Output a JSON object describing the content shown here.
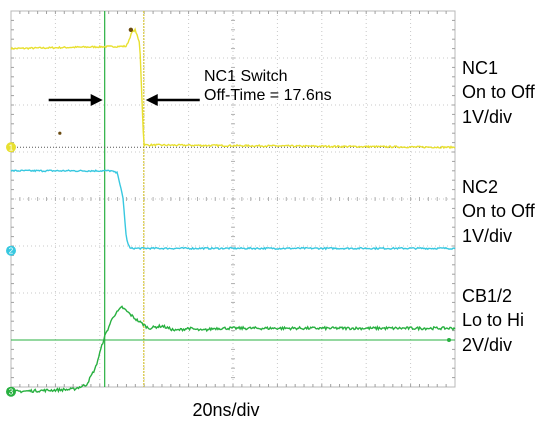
{
  "chart_data": {
    "type": "line",
    "title": "",
    "xlabel": "20ns/div",
    "ylabel": "",
    "grid": true,
    "divisions": {
      "x": 10,
      "y": 8
    },
    "x": {
      "unit": "ns",
      "per_div": 20,
      "range": [
        0,
        200
      ]
    },
    "cursors_ns": [
      42.2,
      59.8
    ],
    "annotation": {
      "lines": [
        "NC1 Switch",
        "Off-Time = 17.6ns"
      ],
      "arrows": [
        "right",
        "left"
      ]
    },
    "series": [
      {
        "name": "NC1",
        "channel": "1",
        "labels": [
          "NC1",
          "On to Off",
          "1V/div"
        ],
        "color": "#e8e030",
        "scale_per_div": "1V/div",
        "ground_div": 5.1,
        "x_ns": [
          0,
          52,
          54.5,
          56,
          58,
          59.8,
          200
        ],
        "level_div": [
          7.2,
          7.25,
          7.55,
          7.6,
          7.3,
          5.15,
          5.1
        ]
      },
      {
        "name": "NC2",
        "channel": "2",
        "labels": [
          "NC2",
          "On to Off",
          "1V/div"
        ],
        "color": "#38c8e0",
        "scale_per_div": "1V/div",
        "ground_div": 2.9,
        "x_ns": [
          0,
          45,
          48,
          50.5,
          52,
          53.5,
          58,
          200
        ],
        "level_div": [
          4.6,
          4.6,
          4.55,
          4.0,
          3.15,
          2.95,
          2.95,
          2.95
        ]
      },
      {
        "name": "CB1/2",
        "channel": "3",
        "labels": [
          "CB1/2",
          "Lo to Hi",
          "2V/div"
        ],
        "color": "#28b040",
        "scale_per_div": "2V/div",
        "threshold_div": 1.0,
        "x_ns": [
          0,
          28,
          34,
          38,
          42,
          46,
          50,
          56,
          62,
          68,
          74,
          80,
          86,
          92,
          100,
          200
        ],
        "level_div": [
          -0.1,
          -0.05,
          0.05,
          0.4,
          1.05,
          1.5,
          1.7,
          1.45,
          1.25,
          1.3,
          1.2,
          1.25,
          1.2,
          1.25,
          1.25,
          1.25
        ]
      }
    ]
  }
}
